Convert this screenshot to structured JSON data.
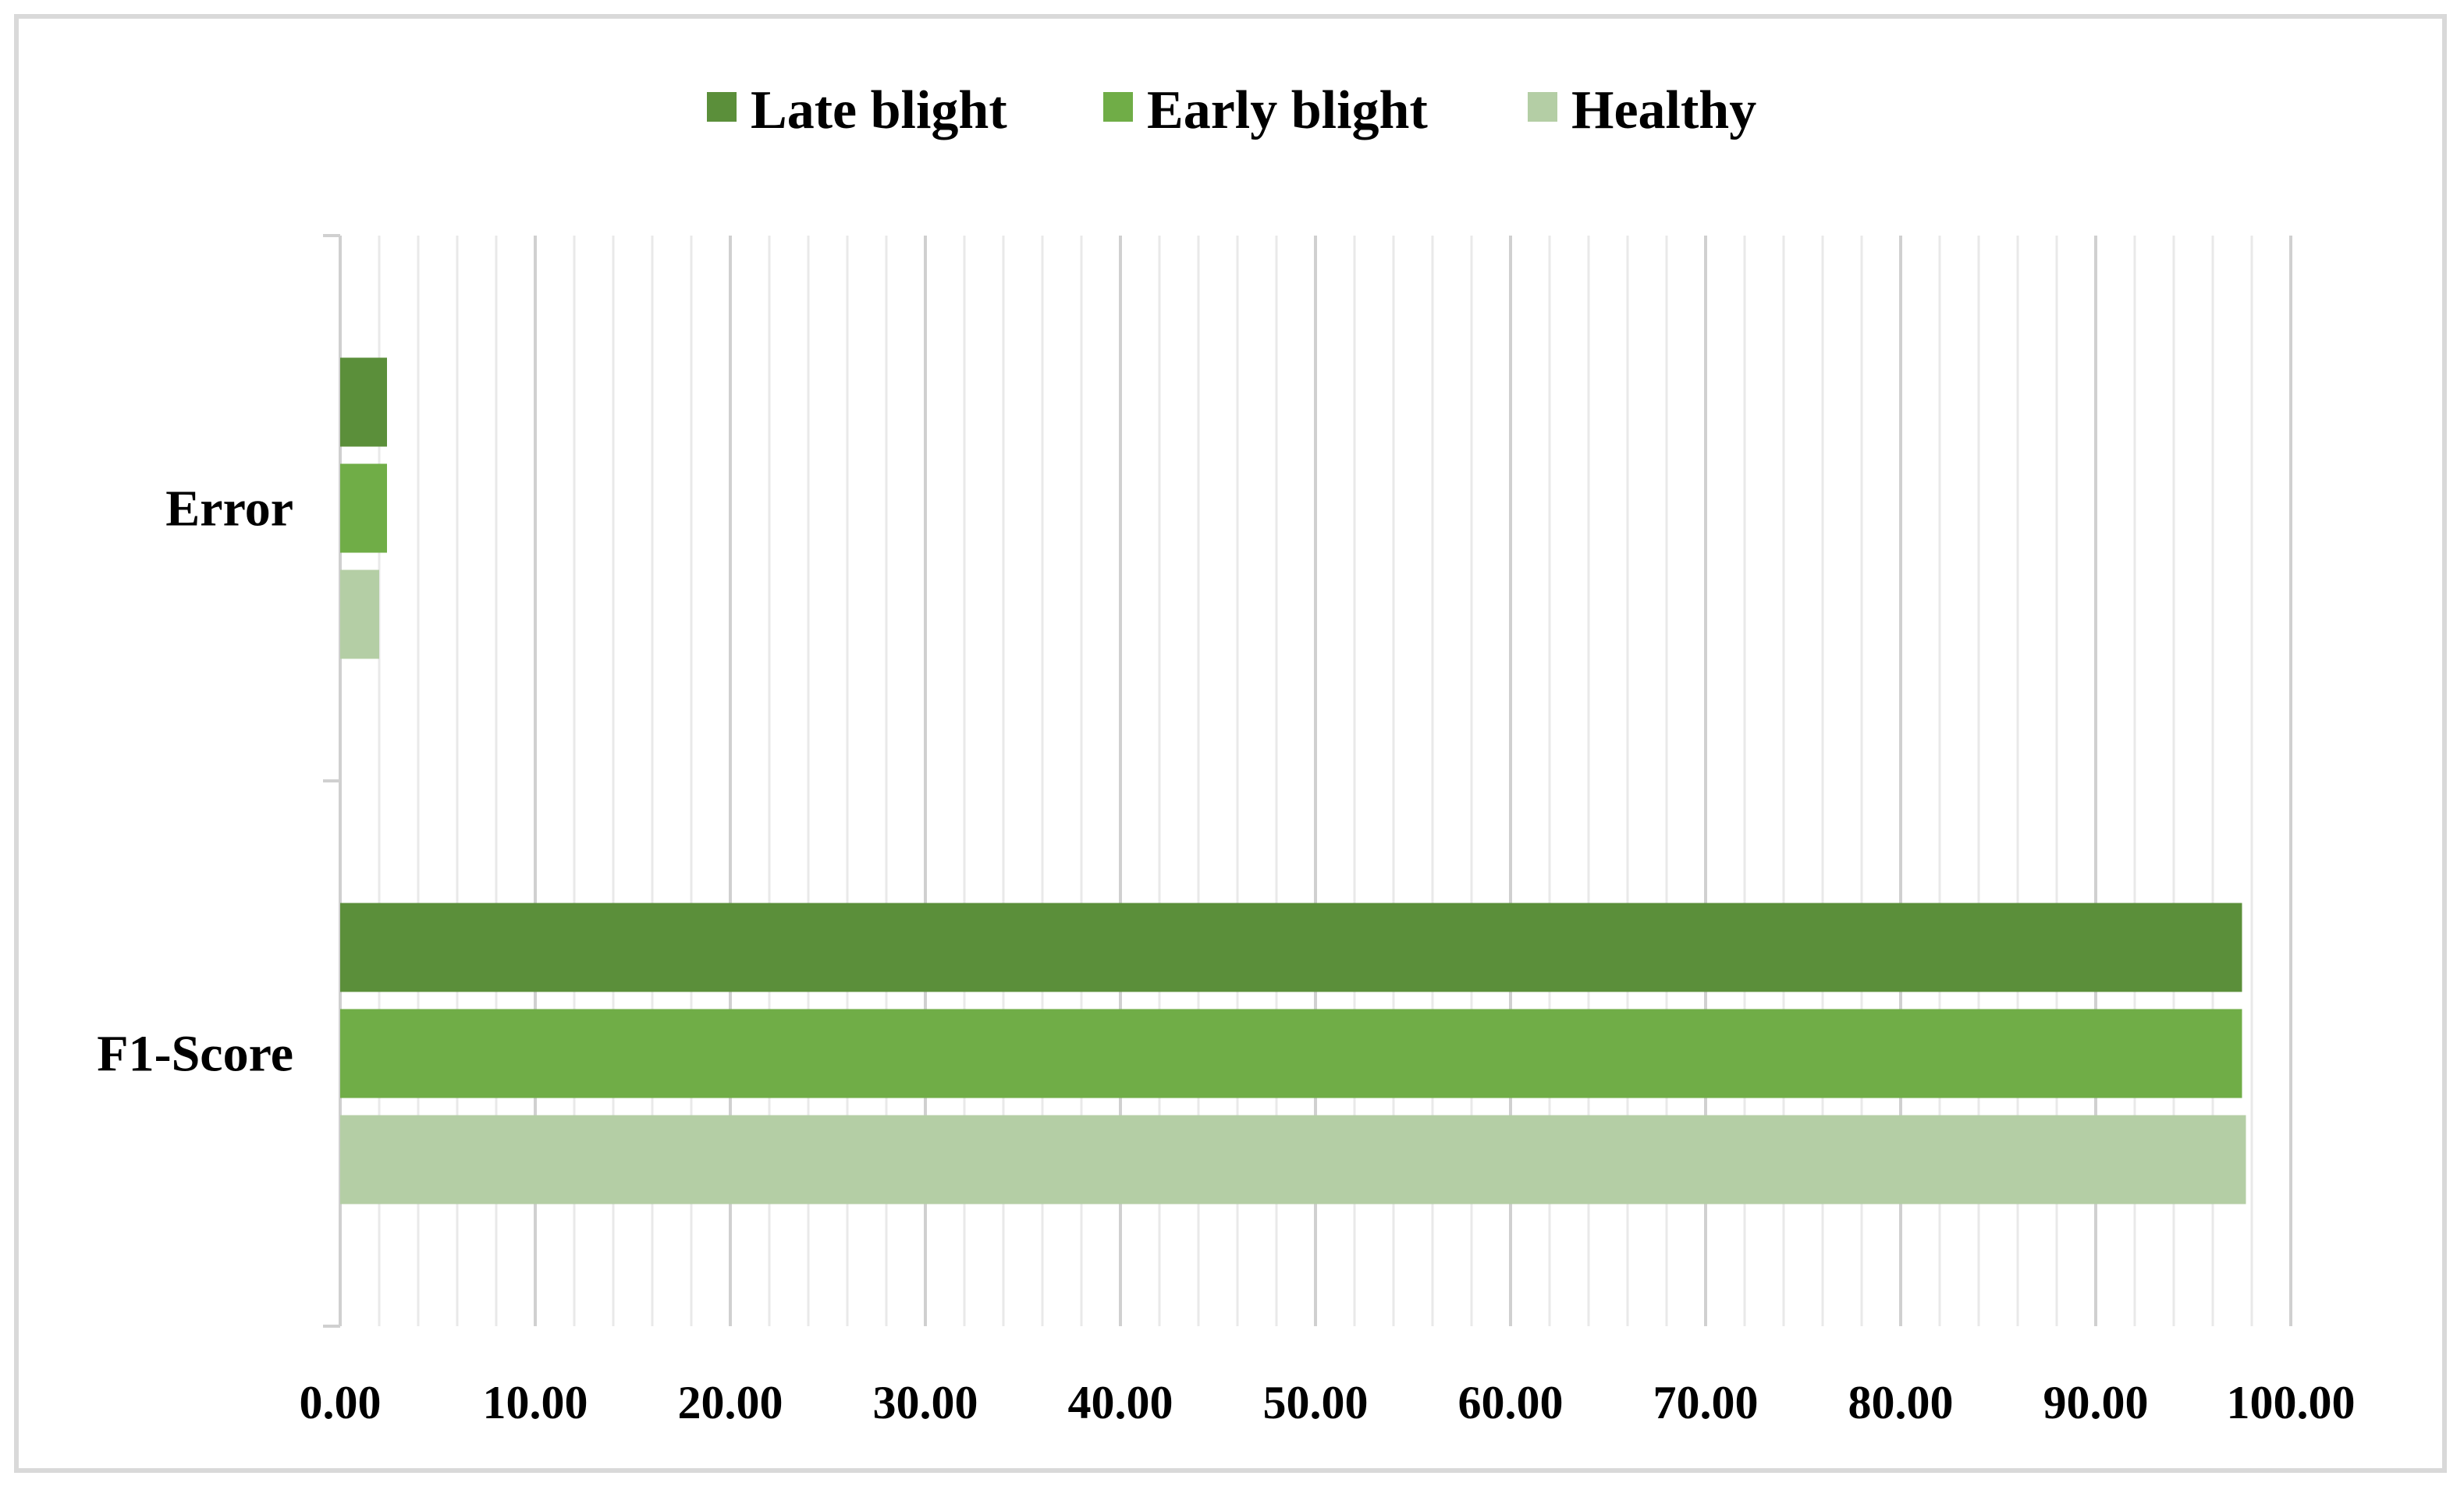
{
  "chart_data": {
    "type": "bar",
    "orientation": "horizontal",
    "title": "",
    "xlabel": "",
    "ylabel": "",
    "categories": [
      "Error",
      "F1-Score"
    ],
    "series": [
      {
        "name": "Late blight",
        "color": "#5b8f3a",
        "values": [
          2.4,
          97.5
        ]
      },
      {
        "name": "Early blight",
        "color": "#70ad47",
        "values": [
          2.4,
          97.5
        ]
      },
      {
        "name": "Healthy",
        "color": "#b4cea5",
        "values": [
          2.0,
          97.7
        ]
      }
    ],
    "xlim": [
      0,
      100
    ],
    "x_ticks": [
      "0.00",
      "10.00",
      "20.00",
      "30.00",
      "40.00",
      "50.00",
      "60.00",
      "70.00",
      "80.00",
      "90.00",
      "100.00"
    ],
    "grid": "vertical major and minor",
    "legend_position": "top"
  }
}
